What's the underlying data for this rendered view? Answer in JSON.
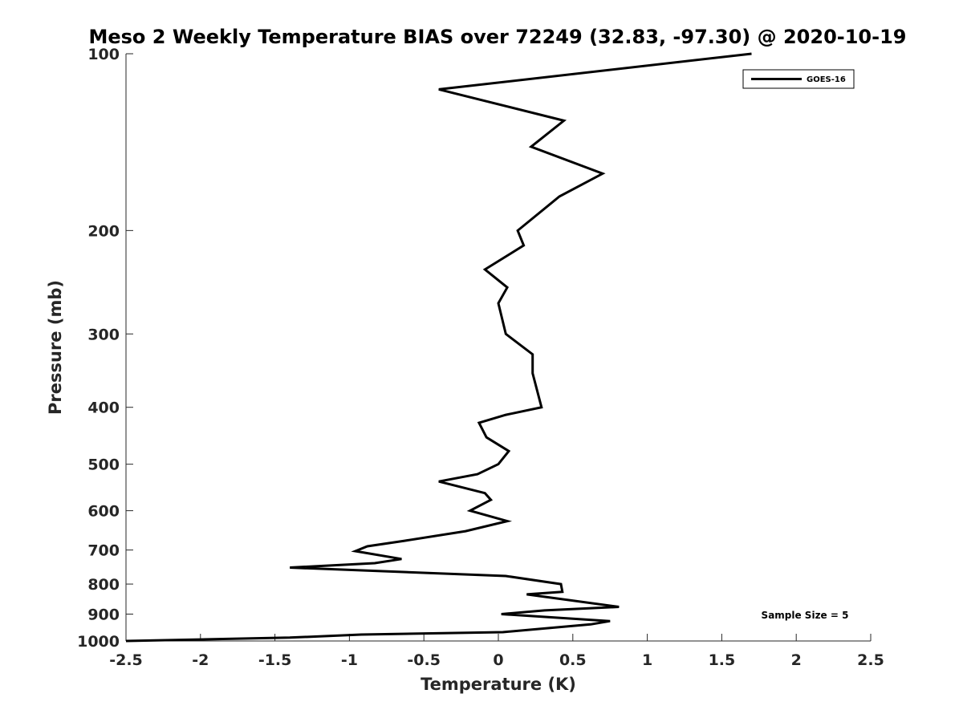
{
  "chart_data": {
    "type": "line",
    "title": "Meso 2 Weekly Temperature BIAS over 72249 (32.83, -97.30) @ 2020-10-19",
    "xlabel": "Temperature (K)",
    "ylabel": "Pressure (mb)",
    "xlim": [
      -2.5,
      2.5
    ],
    "ylim": [
      1000,
      100
    ],
    "y_scale": "log",
    "y_reversed": true,
    "grid": false,
    "legend_position": "top-right",
    "x_ticks": [
      "-2.5",
      "-2",
      "-1.5",
      "-1",
      "-0.5",
      "0",
      "0.5",
      "1",
      "1.5",
      "2",
      "2.5"
    ],
    "y_ticks": [
      "100",
      "200",
      "300",
      "400",
      "500",
      "600",
      "700",
      "800",
      "900",
      "1000"
    ],
    "annotation": "Sample Size = 5",
    "series": [
      {
        "name": "GOES-16",
        "color": "#000000",
        "points": [
          [
            1.7,
            100
          ],
          [
            -0.4,
            115
          ],
          [
            0.44,
            130
          ],
          [
            0.22,
            144
          ],
          [
            0.7,
            160
          ],
          [
            0.41,
            175
          ],
          [
            0.13,
            200
          ],
          [
            0.17,
            212
          ],
          [
            -0.09,
            233
          ],
          [
            0.06,
            250
          ],
          [
            0.0,
            266
          ],
          [
            0.05,
            300
          ],
          [
            0.23,
            325
          ],
          [
            0.23,
            350
          ],
          [
            0.29,
            400
          ],
          [
            0.05,
            412
          ],
          [
            -0.13,
            425
          ],
          [
            -0.08,
            450
          ],
          [
            0.07,
            475
          ],
          [
            0.0,
            500
          ],
          [
            -0.14,
            520
          ],
          [
            -0.4,
            535
          ],
          [
            -0.09,
            560
          ],
          [
            -0.05,
            575
          ],
          [
            -0.19,
            600
          ],
          [
            0.06,
            625
          ],
          [
            -0.22,
            650
          ],
          [
            -0.63,
            675
          ],
          [
            -0.88,
            690
          ],
          [
            -0.96,
            703
          ],
          [
            -0.65,
            725
          ],
          [
            -0.83,
            737
          ],
          [
            -1.4,
            750
          ],
          [
            0.05,
            775
          ],
          [
            0.42,
            800
          ],
          [
            0.43,
            825
          ],
          [
            0.19,
            833
          ],
          [
            0.81,
            875
          ],
          [
            0.31,
            887
          ],
          [
            0.02,
            900
          ],
          [
            0.75,
            925
          ],
          [
            0.62,
            937
          ],
          [
            0.03,
            966
          ],
          [
            -0.92,
            975
          ],
          [
            -1.4,
            987
          ],
          [
            -2.5,
            1000
          ]
        ]
      }
    ]
  }
}
